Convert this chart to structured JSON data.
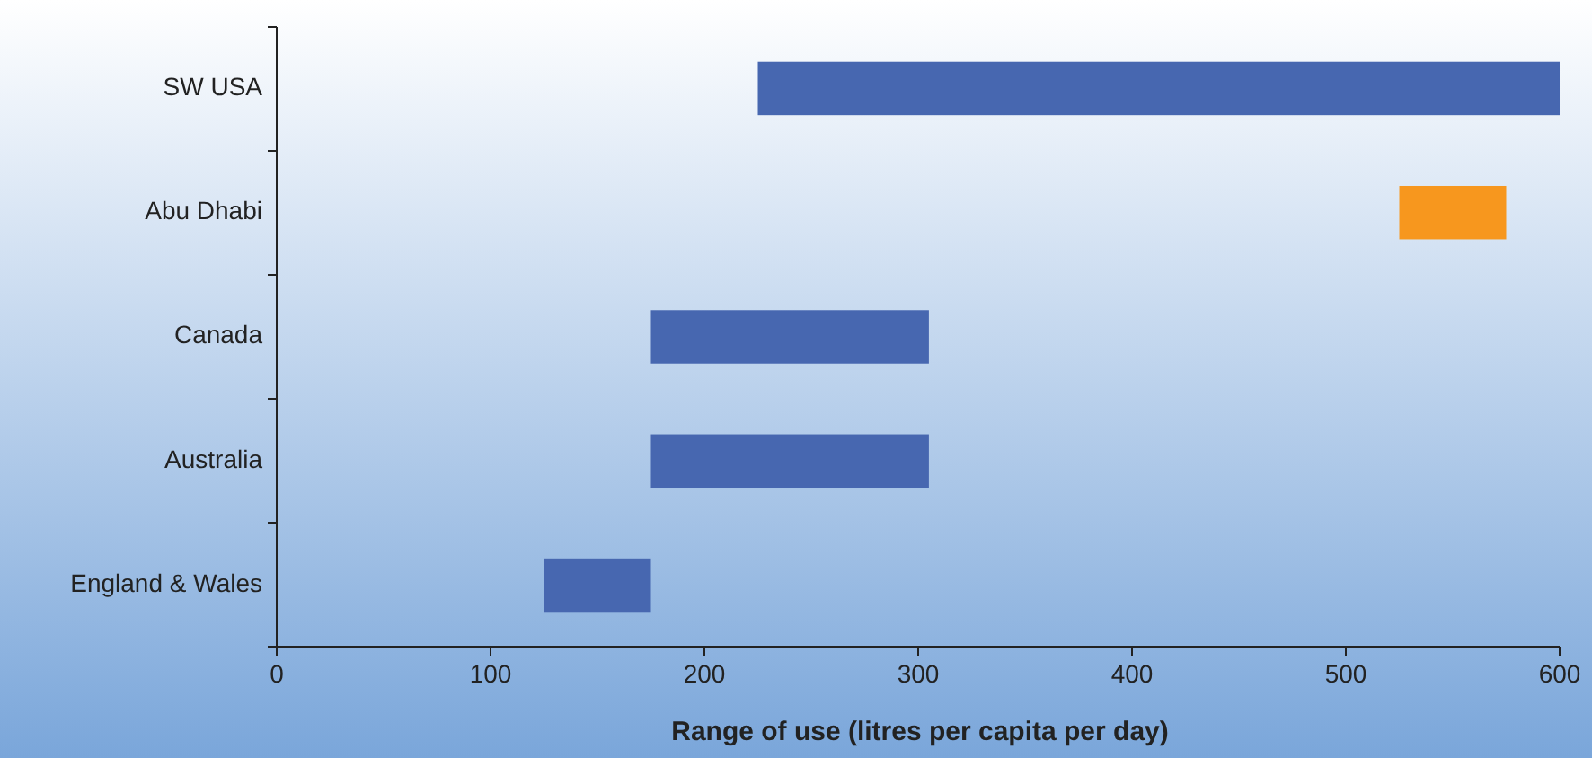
{
  "chart_data": {
    "type": "bar",
    "orientation": "horizontal",
    "xlabel": "Range of use (litres per capita per day)",
    "categories": [
      "SW USA",
      "Abu Dhabi",
      "Canada",
      "Australia",
      "England & Wales"
    ],
    "base": [
      225,
      525,
      175,
      175,
      125
    ],
    "values": [
      375,
      50,
      130,
      130,
      50
    ],
    "colors": [
      "#4767b0",
      "#f7971e",
      "#4767b0",
      "#4767b0",
      "#4767b0"
    ],
    "xlim": [
      0,
      600
    ],
    "xticks": [
      0,
      100,
      200,
      300,
      400,
      500,
      600
    ],
    "grid": false
  }
}
